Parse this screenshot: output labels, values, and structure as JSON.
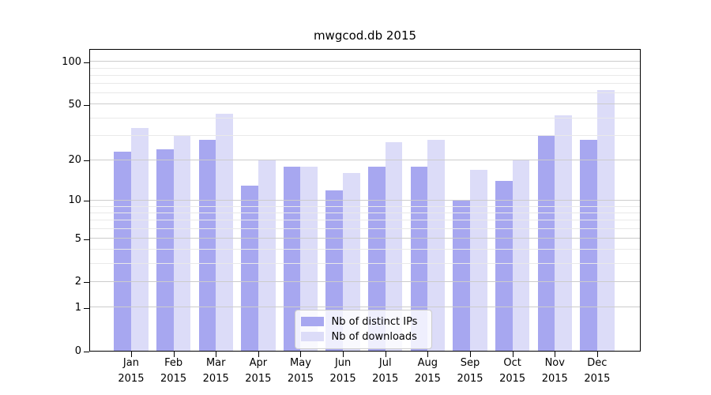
{
  "title": "mwgcod.db 2015",
  "colors": {
    "series_ips": "#a7a7f0",
    "series_downloads": "#dcdcf8",
    "grid_major": "#cccccc",
    "grid_minor": "#e9e9e9",
    "axis": "#000000"
  },
  "legend": {
    "items": [
      {
        "label": "Nb of distinct IPs",
        "series": "ips"
      },
      {
        "label": "Nb of downloads",
        "series": "downloads"
      }
    ],
    "position": "lower center"
  },
  "y_axis": {
    "tick_labels": [
      "100",
      "50",
      "20",
      "10",
      "5",
      "2",
      "1",
      "0"
    ],
    "ticks": [
      100,
      50,
      20,
      10,
      5,
      2,
      1,
      0
    ],
    "minor_gridlines": [
      3,
      4,
      6,
      7,
      8,
      9,
      30,
      40,
      60,
      70,
      80,
      90
    ],
    "scale": "log10(1+y)"
  },
  "x_axis": {
    "categories": [
      {
        "month": "Jan",
        "year": "2015"
      },
      {
        "month": "Feb",
        "year": "2015"
      },
      {
        "month": "Mar",
        "year": "2015"
      },
      {
        "month": "Apr",
        "year": "2015"
      },
      {
        "month": "May",
        "year": "2015"
      },
      {
        "month": "Jun",
        "year": "2015"
      },
      {
        "month": "Jul",
        "year": "2015"
      },
      {
        "month": "Aug",
        "year": "2015"
      },
      {
        "month": "Sep",
        "year": "2015"
      },
      {
        "month": "Oct",
        "year": "2015"
      },
      {
        "month": "Nov",
        "year": "2015"
      },
      {
        "month": "Dec",
        "year": "2015"
      }
    ]
  },
  "chart_data": {
    "type": "bar",
    "title": "mwgcod.db 2015",
    "xlabel": "",
    "ylabel": "",
    "categories": [
      "Jan 2015",
      "Feb 2015",
      "Mar 2015",
      "Apr 2015",
      "May 2015",
      "Jun 2015",
      "Jul 2015",
      "Aug 2015",
      "Sep 2015",
      "Oct 2015",
      "Nov 2015",
      "Dec 2015"
    ],
    "series": [
      {
        "name": "Nb of distinct IPs",
        "values": [
          23,
          24,
          28,
          13,
          18,
          12,
          18,
          18,
          10,
          14,
          30,
          28
        ]
      },
      {
        "name": "Nb of downloads",
        "values": [
          34,
          30,
          43,
          20,
          18,
          16,
          27,
          28,
          17,
          20,
          42,
          63
        ]
      }
    ],
    "yscale": "log1p",
    "yticks": [
      0,
      1,
      2,
      5,
      10,
      20,
      50,
      100
    ],
    "ylim": [
      0,
      123
    ],
    "grid": "both",
    "legend_position": "lower center"
  }
}
